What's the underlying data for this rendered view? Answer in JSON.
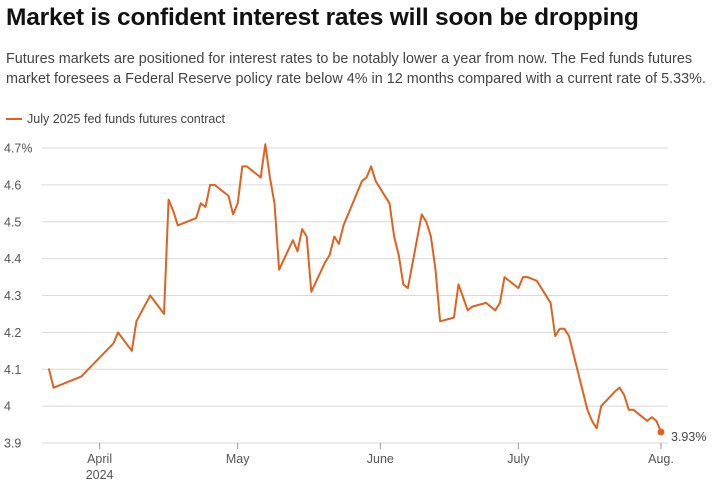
{
  "title": "Market is confident interest rates will soon be dropping",
  "subtitle": "Futures markets are positioned for interest rates to be notably lower a year from now. The Fed funds futures market foresees a Federal Reserve policy rate below 4% in 12 months compared with a current rate of 5.33%.",
  "colors": {
    "series": "#e0621f",
    "grid": "#d9d9d9",
    "text": "#555555"
  },
  "chart_data": {
    "type": "line",
    "series": [
      {
        "name": "July 2025 fed funds futures contract",
        "x": [
          "2024-03-21",
          "2024-03-22",
          "2024-03-28",
          "2024-04-04",
          "2024-04-05",
          "2024-04-08",
          "2024-04-09",
          "2024-04-12",
          "2024-04-15",
          "2024-04-16",
          "2024-04-17",
          "2024-04-18",
          "2024-04-22",
          "2024-04-23",
          "2024-04-24",
          "2024-04-25",
          "2024-04-26",
          "2024-04-29",
          "2024-04-30",
          "2024-05-01",
          "2024-05-02",
          "2024-05-03",
          "2024-05-06",
          "2024-05-07",
          "2024-05-08",
          "2024-05-09",
          "2024-05-10",
          "2024-05-13",
          "2024-05-14",
          "2024-05-15",
          "2024-05-16",
          "2024-05-17",
          "2024-05-20",
          "2024-05-21",
          "2024-05-22",
          "2024-05-23",
          "2024-05-24",
          "2024-05-28",
          "2024-05-29",
          "2024-05-30",
          "2024-05-31",
          "2024-06-03",
          "2024-06-04",
          "2024-06-05",
          "2024-06-06",
          "2024-06-07",
          "2024-06-10",
          "2024-06-11",
          "2024-06-12",
          "2024-06-13",
          "2024-06-14",
          "2024-06-17",
          "2024-06-18",
          "2024-06-20",
          "2024-06-21",
          "2024-06-24",
          "2024-06-25",
          "2024-06-26",
          "2024-06-27",
          "2024-06-28",
          "2024-07-01",
          "2024-07-02",
          "2024-07-03",
          "2024-07-05",
          "2024-07-08",
          "2024-07-09",
          "2024-07-10",
          "2024-07-11",
          "2024-07-12",
          "2024-07-15",
          "2024-07-16",
          "2024-07-17",
          "2024-07-18",
          "2024-07-19",
          "2024-07-22",
          "2024-07-23",
          "2024-07-24",
          "2024-07-25",
          "2024-07-26",
          "2024-07-29",
          "2024-07-30",
          "2024-07-31",
          "2024-08-01"
        ],
        "values": [
          4.1,
          4.05,
          4.08,
          4.17,
          4.2,
          4.15,
          4.23,
          4.3,
          4.25,
          4.56,
          4.53,
          4.49,
          4.51,
          4.55,
          4.54,
          4.6,
          4.6,
          4.57,
          4.52,
          4.55,
          4.65,
          4.65,
          4.62,
          4.71,
          4.62,
          4.55,
          4.37,
          4.45,
          4.42,
          4.48,
          4.46,
          4.31,
          4.39,
          4.41,
          4.46,
          4.44,
          4.49,
          4.61,
          4.62,
          4.65,
          4.61,
          4.55,
          4.46,
          4.41,
          4.33,
          4.32,
          4.52,
          4.5,
          4.46,
          4.37,
          4.23,
          4.24,
          4.33,
          4.26,
          4.27,
          4.28,
          4.27,
          4.26,
          4.28,
          4.35,
          4.32,
          4.35,
          4.35,
          4.34,
          4.28,
          4.19,
          4.21,
          4.21,
          4.19,
          4.04,
          3.99,
          3.96,
          3.94,
          4.0,
          4.04,
          4.05,
          4.03,
          3.99,
          3.99,
          3.96,
          3.97,
          3.96,
          3.93
        ]
      }
    ],
    "end_label": "3.93%",
    "y_ticks": [
      {
        "value": 3.9,
        "label": "3.9"
      },
      {
        "value": 4.0,
        "label": "4"
      },
      {
        "value": 4.1,
        "label": "4.1"
      },
      {
        "value": 4.2,
        "label": "4.2"
      },
      {
        "value": 4.3,
        "label": "4.3"
      },
      {
        "value": 4.4,
        "label": "4.4"
      },
      {
        "value": 4.5,
        "label": "4.5"
      },
      {
        "value": 4.6,
        "label": "4.6"
      },
      {
        "value": 4.7,
        "label": "4.7%"
      }
    ],
    "x_ticks": [
      {
        "date": "2024-04-01",
        "label": "April",
        "sublabel": "2024"
      },
      {
        "date": "2024-05-01",
        "label": "May",
        "sublabel": ""
      },
      {
        "date": "2024-06-01",
        "label": "June",
        "sublabel": ""
      },
      {
        "date": "2024-07-01",
        "label": "July",
        "sublabel": ""
      },
      {
        "date": "2024-08-01",
        "label": "Aug.",
        "sublabel": ""
      }
    ],
    "xlim": [
      "2024-03-21",
      "2024-08-01"
    ],
    "ylim": [
      3.9,
      4.7
    ],
    "grid": true,
    "legend_position": "top-left"
  }
}
